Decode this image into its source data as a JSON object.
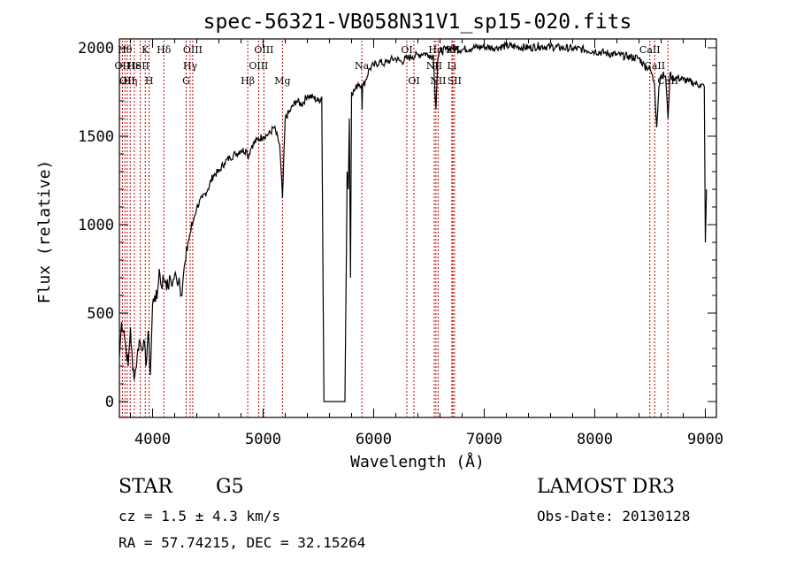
{
  "chart_data": {
    "type": "line",
    "title": "spec-56321-VB058N31V1_sp15-020.fits",
    "xlabel": "Wavelength (Å)",
    "ylabel": "Flux (relative)",
    "xlim": [
      3700,
      9100
    ],
    "ylim": [
      -90,
      2050
    ],
    "x_ticks": [
      4000,
      5000,
      6000,
      7000,
      8000,
      9000
    ],
    "y_ticks": [
      0,
      500,
      1000,
      1500,
      2000
    ],
    "series": [
      {
        "x": [
          3700,
          3720,
          3740,
          3760,
          3780,
          3800,
          3820,
          3840,
          3860,
          3880,
          3900,
          3920,
          3940,
          3960,
          3980,
          4000,
          4020,
          4040,
          4060,
          4080,
          4100,
          4120,
          4140,
          4160,
          4180,
          4200,
          4220,
          4240,
          4260,
          4280,
          4300,
          4320,
          4340,
          4360,
          4380,
          4400,
          4450,
          4500,
          4550,
          4600,
          4650,
          4700,
          4750,
          4800,
          4850,
          4860,
          4900,
          4950,
          5000,
          5050,
          5100,
          5150,
          5175,
          5200,
          5250,
          5300,
          5350,
          5400,
          5450,
          5500,
          5530,
          5550,
          5570,
          5600,
          5650,
          5700,
          5740,
          5760,
          5770,
          5780,
          5790,
          5800,
          5830,
          5860,
          5890,
          5895,
          5900,
          5930,
          5960,
          6000,
          6050,
          6100,
          6150,
          6200,
          6250,
          6300,
          6350,
          6400,
          6450,
          6500,
          6540,
          6563,
          6580,
          6600,
          6650,
          6700,
          6750,
          6800,
          6900,
          7000,
          7100,
          7200,
          7300,
          7400,
          7500,
          7600,
          7700,
          7800,
          7900,
          8000,
          8100,
          8200,
          8300,
          8400,
          8450,
          8500,
          8540,
          8560,
          8580,
          8600,
          8640,
          8662,
          8680,
          8700,
          8750,
          8800,
          8850,
          8900,
          8950,
          8990,
          9000,
          9010
        ],
        "y": [
          250,
          450,
          400,
          300,
          200,
          420,
          180,
          150,
          250,
          350,
          300,
          350,
          200,
          400,
          150,
          550,
          600,
          580,
          750,
          650,
          700,
          680,
          640,
          700,
          660,
          720,
          680,
          700,
          600,
          720,
          800,
          900,
          950,
          1000,
          1050,
          1100,
          1150,
          1200,
          1280,
          1300,
          1350,
          1380,
          1400,
          1420,
          1420,
          1380,
          1450,
          1480,
          1500,
          1510,
          1550,
          1450,
          1150,
          1600,
          1650,
          1700,
          1680,
          1730,
          1720,
          1700,
          1720,
          0,
          0,
          0,
          0,
          0,
          0,
          1300,
          1200,
          1600,
          700,
          1750,
          1760,
          1800,
          1790,
          1650,
          1780,
          1820,
          1880,
          1900,
          1920,
          1910,
          1930,
          1940,
          1920,
          1940,
          1950,
          1960,
          1970,
          1960,
          1950,
          1650,
          1940,
          1980,
          1990,
          2000,
          1995,
          1990,
          2000,
          2005,
          2000,
          2010,
          2005,
          2000,
          2010,
          2005,
          2000,
          1995,
          1990,
          1980,
          1970,
          1960,
          1950,
          1940,
          1900,
          1880,
          1800,
          1550,
          1780,
          1850,
          1840,
          1600,
          1850,
          1830,
          1830,
          1820,
          1810,
          1800,
          1790,
          1780,
          900,
          1200
        ]
      }
    ],
    "line_markers": [
      {
        "x": 3727,
        "label": "OII",
        "row": 2
      },
      {
        "x": 3750,
        "label": "Hθ",
        "row": 1
      },
      {
        "x": 3771,
        "label": "OII",
        "row": 3
      },
      {
        "x": 3798,
        "label": "Hη",
        "row": 3
      },
      {
        "x": 3835,
        "label": "He",
        "row": 2
      },
      {
        "x": 3889,
        "label": "ISII",
        "row": 2
      },
      {
        "x": 3934,
        "label": "K",
        "row": 1
      },
      {
        "x": 3969,
        "label": "H",
        "row": 3
      },
      {
        "x": 4102,
        "label": "Hδ",
        "row": 1
      },
      {
        "x": 4304,
        "label": "G",
        "row": 3
      },
      {
        "x": 4340,
        "label": "Hγ",
        "row": 2
      },
      {
        "x": 4363,
        "label": "OIII",
        "row": 1
      },
      {
        "x": 4861,
        "label": "Hβ",
        "row": 3
      },
      {
        "x": 4959,
        "label": "OIII",
        "row": 2
      },
      {
        "x": 5007,
        "label": "OIII",
        "row": 1
      },
      {
        "x": 5175,
        "label": "Mg",
        "row": 3
      },
      {
        "x": 5893,
        "label": "Na",
        "row": 2
      },
      {
        "x": 6300,
        "label": "OI",
        "row": 1
      },
      {
        "x": 6364,
        "label": "OI",
        "row": 3
      },
      {
        "x": 6548,
        "label": "NII",
        "row": 2
      },
      {
        "x": 6563,
        "label": "Hα",
        "row": 1
      },
      {
        "x": 6583,
        "label": "NII",
        "row": 3
      },
      {
        "x": 6707,
        "label": "Li",
        "row": 2
      },
      {
        "x": 6716,
        "label": "SII",
        "row": 1
      },
      {
        "x": 6731,
        "label": "SII",
        "row": 3
      },
      {
        "x": 8498,
        "label": "CaII",
        "row": 1
      },
      {
        "x": 8542,
        "label": "CaII",
        "row": 2
      },
      {
        "x": 8662,
        "label": "CaII",
        "row": 3
      }
    ]
  },
  "info": {
    "class": "STAR",
    "subclass": "G5",
    "survey": "LAMOST DR3",
    "cz": "cz = 1.5 ± 4.3 km/s",
    "obs_date": "Obs-Date: 20130128",
    "radec": "RA =  57.74215, DEC =  32.15264"
  },
  "colors": {
    "spectrum": "#000000",
    "line_markers": "#c00000"
  }
}
